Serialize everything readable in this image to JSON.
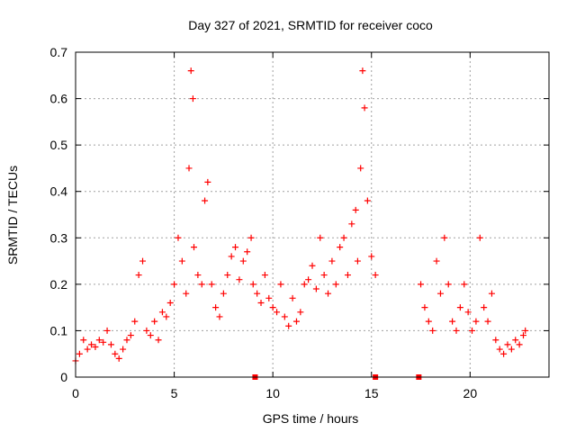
{
  "chart_data": {
    "type": "scatter",
    "title": "Day 327 of 2021, SRMTID for receiver coco",
    "xlabel": "GPS time / hours",
    "ylabel": "SRMTID / TECUs",
    "xlim": [
      0,
      24
    ],
    "ylim": [
      0,
      0.7
    ],
    "xticks": [
      0,
      5,
      10,
      15,
      20
    ],
    "yticks": [
      0,
      0.1,
      0.2,
      0.3,
      0.4,
      0.5,
      0.6,
      0.7
    ],
    "xtick_labels": [
      "0",
      "5",
      "10",
      "15",
      "20"
    ],
    "ytick_labels": [
      "0",
      "0.1",
      "0.2",
      "0.3",
      "0.4",
      "0.5",
      "0.6",
      "0.7"
    ],
    "grid": true,
    "marker": "plus",
    "color": "#ff0000",
    "gap_markers_x": [
      9.1,
      15.2,
      17.4
    ],
    "series": [
      {
        "name": "SRMTID",
        "x": [
          0.0,
          0.2,
          0.4,
          0.6,
          0.8,
          1.0,
          1.2,
          1.4,
          1.6,
          1.8,
          2.0,
          2.2,
          2.4,
          2.6,
          2.8,
          3.0,
          3.2,
          3.4,
          3.6,
          3.8,
          4.0,
          4.2,
          4.4,
          4.6,
          4.8,
          5.0,
          5.2,
          5.4,
          5.6,
          5.75,
          5.85,
          5.95,
          6.0,
          6.2,
          6.4,
          6.55,
          6.7,
          6.9,
          7.1,
          7.3,
          7.5,
          7.7,
          7.9,
          8.1,
          8.3,
          8.5,
          8.7,
          8.9,
          9.0,
          9.2,
          9.4,
          9.6,
          9.8,
          10.0,
          10.2,
          10.4,
          10.6,
          10.8,
          11.0,
          11.2,
          11.4,
          11.6,
          11.8,
          12.0,
          12.2,
          12.4,
          12.6,
          12.8,
          13.0,
          13.2,
          13.4,
          13.6,
          13.8,
          14.0,
          14.2,
          14.3,
          14.45,
          14.55,
          14.65,
          14.8,
          15.0,
          15.2,
          17.5,
          17.7,
          17.9,
          18.1,
          18.3,
          18.5,
          18.7,
          18.9,
          19.1,
          19.3,
          19.5,
          19.7,
          19.9,
          20.1,
          20.3,
          20.5,
          20.7,
          20.9,
          21.1,
          21.3,
          21.5,
          21.7,
          21.9,
          22.1,
          22.3,
          22.5,
          22.7,
          22.8
        ],
        "y": [
          0.035,
          0.05,
          0.08,
          0.06,
          0.07,
          0.065,
          0.08,
          0.075,
          0.1,
          0.07,
          0.05,
          0.04,
          0.06,
          0.08,
          0.09,
          0.12,
          0.22,
          0.25,
          0.1,
          0.09,
          0.12,
          0.08,
          0.14,
          0.13,
          0.16,
          0.2,
          0.3,
          0.25,
          0.18,
          0.45,
          0.66,
          0.6,
          0.28,
          0.22,
          0.2,
          0.38,
          0.42,
          0.2,
          0.15,
          0.13,
          0.18,
          0.22,
          0.26,
          0.28,
          0.21,
          0.25,
          0.27,
          0.3,
          0.2,
          0.18,
          0.16,
          0.22,
          0.17,
          0.15,
          0.14,
          0.2,
          0.13,
          0.11,
          0.17,
          0.12,
          0.14,
          0.2,
          0.21,
          0.24,
          0.19,
          0.3,
          0.22,
          0.18,
          0.25,
          0.2,
          0.28,
          0.3,
          0.22,
          0.33,
          0.36,
          0.25,
          0.45,
          0.66,
          0.58,
          0.38,
          0.26,
          0.22,
          0.2,
          0.15,
          0.12,
          0.1,
          0.25,
          0.18,
          0.3,
          0.2,
          0.12,
          0.1,
          0.15,
          0.2,
          0.14,
          0.1,
          0.12,
          0.3,
          0.15,
          0.12,
          0.18,
          0.08,
          0.06,
          0.05,
          0.07,
          0.06,
          0.08,
          0.07,
          0.09,
          0.1
        ]
      }
    ]
  }
}
